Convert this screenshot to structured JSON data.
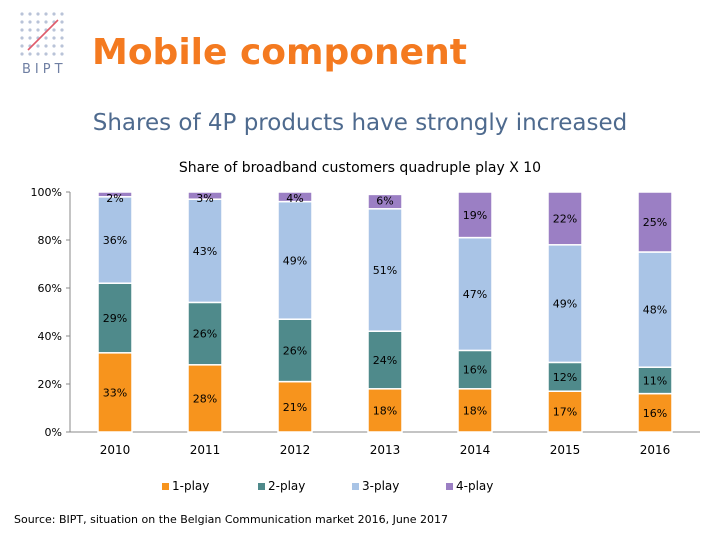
{
  "header": {
    "logo_text": "BIPT",
    "title": "Mobile component"
  },
  "subtitle": "Shares of 4P products have strongly increased",
  "source": "Source: BIPT, situation on the Belgian Communication market 2016, June 2017",
  "colors": {
    "title_orange": "#f47a20",
    "subtitle_blue": "#4e6a8e",
    "1-play": "#f7941d",
    "2-play": "#4f8a8b",
    "3-play": "#a9c4e6",
    "4-play": "#9b7fc4"
  },
  "chart_data": {
    "type": "bar",
    "stacked": true,
    "title": "Share of broadband customers quadruple play X 10",
    "categories": [
      "2010",
      "2011",
      "2012",
      "2013",
      "2014",
      "2015",
      "2016"
    ],
    "series": [
      {
        "name": "1-play",
        "values": [
          33,
          28,
          21,
          18,
          18,
          17,
          16
        ],
        "labels": [
          "33%",
          "28%",
          "21%",
          "18%",
          "18%",
          "17%",
          "16%"
        ]
      },
      {
        "name": "2-play",
        "values": [
          29,
          26,
          26,
          24,
          16,
          12,
          11
        ],
        "labels": [
          "29%",
          "26%",
          "26%",
          "24%",
          "16%",
          "12%",
          "11%"
        ]
      },
      {
        "name": "3-play",
        "values": [
          36,
          43,
          49,
          51,
          47,
          49,
          48
        ],
        "labels": [
          "36%",
          "43%",
          "49%",
          "51%",
          "47%",
          "49%",
          "48%"
        ]
      },
      {
        "name": "4-play",
        "values": [
          2,
          3,
          4,
          6,
          19,
          22,
          25
        ],
        "labels": [
          "2%",
          "3%",
          "4%",
          "6%",
          "19%",
          "22%",
          "25%"
        ]
      }
    ],
    "yticks": [
      "0%",
      "20%",
      "40%",
      "60%",
      "80%",
      "100%"
    ],
    "ylim": [
      0,
      100
    ],
    "grid": false,
    "legend_position": "bottom"
  }
}
